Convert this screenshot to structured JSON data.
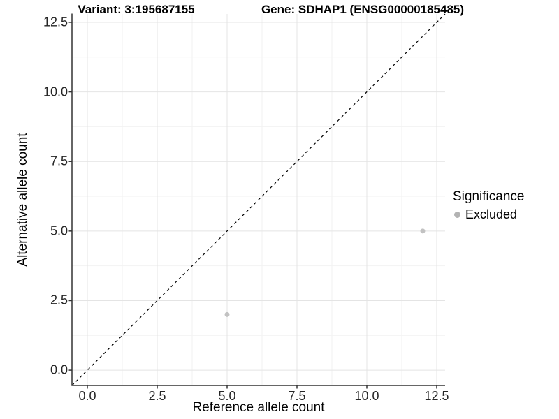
{
  "chart_data": {
    "type": "scatter",
    "titles": {
      "variant": "Variant: 3:195687155",
      "gene": "Gene: SDHAP1 (ENSG00000185485)"
    },
    "xlabel": "Reference allele count",
    "ylabel": "Alternative allele count",
    "xlim": [
      -0.55,
      12.8
    ],
    "ylim": [
      -0.55,
      12.8
    ],
    "x_ticks": [
      0,
      2.5,
      5,
      7.5,
      10,
      12.5
    ],
    "x_tick_labels": [
      "0.0",
      "2.5",
      "5.0",
      "7.5",
      "10.0",
      "12.5"
    ],
    "y_ticks": [
      0,
      2.5,
      5,
      7.5,
      10,
      12.5
    ],
    "y_tick_labels": [
      "0.0",
      "2.5",
      "5.0",
      "7.5",
      "10.0",
      "12.5"
    ],
    "x_minor_ticks": [
      1.25,
      3.75,
      6.25,
      8.75,
      11.25
    ],
    "y_minor_ticks": [
      1.25,
      3.75,
      6.25,
      8.75,
      11.25
    ],
    "grid": true,
    "legend_position": "right",
    "reference_line": {
      "kind": "identity y=x",
      "dashed": true,
      "color": "#000000"
    },
    "series": [
      {
        "name": "Excluded",
        "color": "#c2c2c2",
        "marker_radius": 3.5,
        "points": [
          {
            "x": 5,
            "y": 2
          },
          {
            "x": 12,
            "y": 5
          }
        ]
      }
    ],
    "legend": {
      "title": "Significance",
      "entries": [
        {
          "label": "Excluded",
          "swatch_color": "#b3b3b3"
        }
      ]
    }
  },
  "colors": {
    "grid_major": "#e4e4e4",
    "grid_minor": "#f2f2f2",
    "axis_line": "#333333",
    "tick_text": "#262626",
    "title_text": "#000000",
    "legend_dot": "#b3b3b3"
  }
}
